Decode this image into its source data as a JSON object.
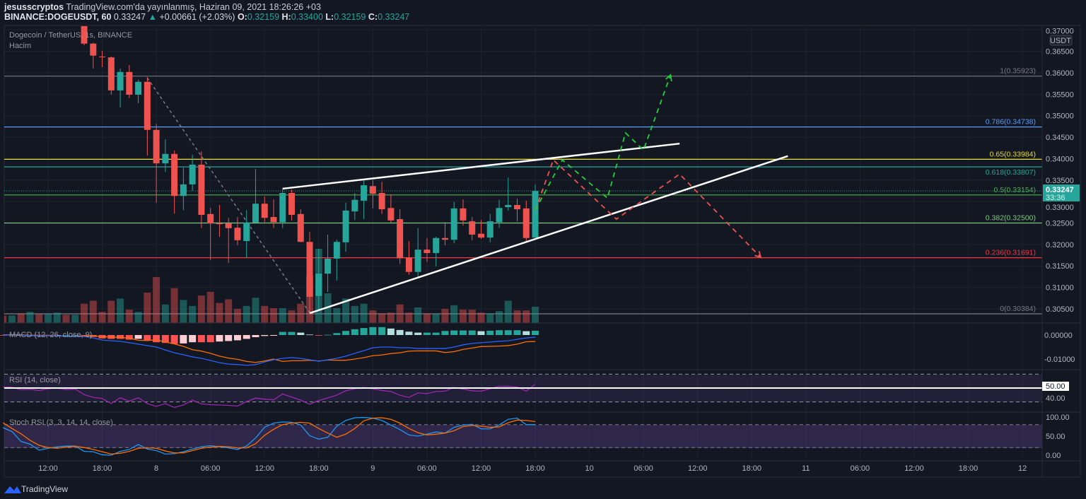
{
  "header": {
    "author": "jesusscryptos",
    "published": "TradingView.com'da yayınlanmış, Haziran 09, 2021 18:26:26 +03",
    "symbol": "BINANCE:DOGEUSDT, 60",
    "last": "0.33247",
    "change": "+0.00661 (+2.03%)",
    "o_label": "O:",
    "o": "0.32159",
    "h_label": "H:",
    "h": "0.33400",
    "l_label": "L:",
    "l": "0.32159",
    "c_label": "C:",
    "c": "0.33247"
  },
  "legend": {
    "title": "Dogecoin / TetherUS, 1s, BINANCE",
    "volume": "Hacim",
    "macd": "MACD (12, 26, close, 9)",
    "rsi": "RSI (14, close)",
    "stoch": "Stoch RSI (3, 3, 14, 14, close)"
  },
  "currency_badge": "USDT",
  "price_tag": {
    "value": "0.33247",
    "countdown": "33:36"
  },
  "rsi_tag": "50.00",
  "footer": {
    "brand": "TradingView"
  },
  "colors": {
    "up": "#26a69a",
    "down": "#ef5350",
    "background": "#131722",
    "macd": "#2962ff",
    "signal": "#ff6d00",
    "rsi": "#7e57c2",
    "stoch_k": "#2196f3",
    "stoch_d": "#ff6d00"
  },
  "chart_data": {
    "type": "candlestick",
    "interval": "60",
    "x_start": "2021-06-07 07:00",
    "price_axis": {
      "ticks": [
        "0.37000",
        "0.36500",
        "0.36000",
        "0.35500",
        "0.35000",
        "0.34500",
        "0.34000",
        "0.33500",
        "0.33000",
        "0.32500",
        "0.32000",
        "0.31500",
        "0.31000",
        "0.30500"
      ]
    },
    "time_axis": {
      "ticks": [
        "12:00",
        "18:00",
        "8",
        "06:00",
        "12:00",
        "18:00",
        "9",
        "06:00",
        "12:00",
        "18:00",
        "10",
        "06:00",
        "12:00",
        "18:00",
        "11",
        "06:00",
        "12:00",
        "18:00",
        "12"
      ]
    },
    "ohlc": [
      null,
      null,
      null,
      null,
      null,
      null,
      null,
      null,
      null,
      [
        0.3709,
        0.3712,
        0.3664,
        0.3668
      ],
      [
        0.3668,
        0.367,
        0.361,
        0.364
      ],
      [
        0.3638,
        0.3651,
        0.3613,
        0.3637
      ],
      [
        0.3636,
        0.3638,
        0.3549,
        0.3559
      ],
      [
        0.3559,
        0.361,
        0.3519,
        0.3602
      ],
      [
        0.3602,
        0.3618,
        0.3541,
        0.3549
      ],
      [
        0.3549,
        0.3584,
        0.3529,
        0.3579
      ],
      [
        0.3579,
        0.359,
        0.3407,
        0.3467
      ],
      [
        0.3467,
        0.3481,
        0.3297,
        0.3389
      ],
      [
        0.3389,
        0.3445,
        0.3369,
        0.3411
      ],
      [
        0.3411,
        0.3419,
        0.3272,
        0.3313
      ],
      [
        0.3313,
        0.3379,
        0.328,
        0.334
      ],
      [
        0.334,
        0.3409,
        0.3325,
        0.3386
      ],
      [
        0.3386,
        0.3417,
        0.3238,
        0.3269
      ],
      [
        0.3271,
        0.3285,
        0.3164,
        0.3249
      ],
      [
        0.3249,
        0.3292,
        0.3218,
        0.3248
      ],
      [
        0.3249,
        0.3262,
        0.3157,
        0.3238
      ],
      [
        0.3239,
        0.3264,
        0.3198,
        0.321
      ],
      [
        0.3208,
        0.328,
        0.3168,
        0.3251
      ],
      [
        0.3251,
        0.3376,
        0.3251,
        0.3295
      ],
      [
        0.3295,
        0.3312,
        0.3252,
        0.3262
      ],
      [
        0.3264,
        0.3305,
        0.3238,
        0.3252
      ],
      [
        0.3252,
        0.333,
        0.3238,
        0.332
      ],
      [
        0.332,
        0.3328,
        0.3256,
        0.3269
      ],
      [
        0.3271,
        0.3282,
        0.3205,
        0.3206
      ],
      [
        0.3206,
        0.3229,
        0.304,
        0.3078
      ],
      [
        0.308,
        0.319,
        0.3045,
        0.3132
      ],
      [
        0.3132,
        0.3223,
        0.3089,
        0.3167
      ],
      [
        0.3167,
        0.3211,
        0.3116,
        0.3206
      ],
      [
        0.3205,
        0.3297,
        0.3183,
        0.3279
      ],
      [
        0.3277,
        0.332,
        0.3257,
        0.3304
      ],
      [
        0.3302,
        0.335,
        0.3259,
        0.3338
      ],
      [
        0.3336,
        0.335,
        0.3284,
        0.3318
      ],
      [
        0.332,
        0.3346,
        0.3271,
        0.3282
      ],
      [
        0.3285,
        0.3317,
        0.3251,
        0.3256
      ],
      [
        0.3259,
        0.3282,
        0.3155,
        0.3168
      ],
      [
        0.317,
        0.3208,
        0.3129,
        0.3136
      ],
      [
        0.3136,
        0.3238,
        0.3122,
        0.3188
      ],
      [
        0.3188,
        0.3215,
        0.3159,
        0.318
      ],
      [
        0.318,
        0.3218,
        0.3149,
        0.3215
      ],
      [
        0.3215,
        0.3252,
        0.3198,
        0.3211
      ],
      [
        0.3211,
        0.3299,
        0.3203,
        0.3284
      ],
      [
        0.3284,
        0.3305,
        0.3244,
        0.3256
      ],
      [
        0.3254,
        0.3264,
        0.321,
        0.3223
      ],
      [
        0.3225,
        0.3257,
        0.3213,
        0.3216
      ],
      [
        0.3216,
        0.3271,
        0.3205,
        0.3254
      ],
      [
        0.3252,
        0.3304,
        0.3239,
        0.3285
      ],
      [
        0.3287,
        0.3356,
        0.3279,
        0.3292
      ],
      [
        0.3292,
        0.3307,
        0.3254,
        0.3282
      ],
      [
        0.3284,
        0.3302,
        0.3206,
        0.3215
      ],
      [
        0.32159,
        0.334,
        0.32159,
        0.33247
      ]
    ],
    "volume_relative": [
      10,
      10,
      13,
      15,
      12,
      12,
      14,
      11,
      11,
      26,
      30,
      15,
      30,
      33,
      18,
      15,
      41,
      62,
      25,
      47,
      31,
      23,
      37,
      42,
      27,
      32,
      19,
      23,
      34,
      23,
      20,
      20,
      17,
      26,
      64,
      100,
      40,
      20,
      33,
      23,
      26,
      17,
      13,
      14,
      25,
      14,
      21,
      13,
      12,
      19,
      24,
      18,
      18,
      14,
      13,
      16,
      30,
      17,
      17,
      22
    ],
    "volume_up_early": [
      0,
      1,
      0,
      1,
      0,
      1,
      1,
      0,
      1
    ],
    "macd": {
      "line": [
        0,
        0,
        0,
        -0.0003,
        -0.0003,
        -0.0003,
        -0.0003,
        -0.0006,
        -0.0006,
        -0.0006,
        -0.0012,
        -0.0021,
        -0.0024,
        -0.0026,
        -0.0032,
        -0.0038,
        -0.0044,
        -0.005,
        -0.0062,
        -0.0074,
        -0.0082,
        -0.0091,
        -0.0097,
        -0.0106,
        -0.0115,
        -0.0121,
        -0.0123,
        -0.0126,
        -0.0123,
        -0.0112,
        -0.0103,
        -0.0097,
        -0.0094,
        -0.0097,
        -0.0103,
        -0.0109,
        -0.0103,
        -0.0097,
        -0.0088,
        -0.0076,
        -0.0065,
        -0.0053,
        -0.005,
        -0.005,
        -0.0053,
        -0.0053,
        -0.0056,
        -0.0056,
        -0.0056,
        -0.0056,
        -0.005,
        -0.0041,
        -0.0035,
        -0.0032,
        -0.0029,
        -0.0026,
        -0.0024,
        -0.0018,
        -0.0012,
        -0.0009
      ],
      "histogram": [
        -0.0001,
        -0.0001,
        -0.0001,
        -0.0002,
        -0.0002,
        -0.0002,
        -0.0001,
        0,
        0,
        -0.0002,
        -0.0008,
        -0.0014,
        -0.0016,
        -0.0016,
        -0.0019,
        -0.0016,
        -0.0021,
        -0.003,
        -0.0033,
        -0.0037,
        -0.0035,
        -0.003,
        -0.003,
        -0.003,
        -0.0027,
        -0.0025,
        -0.0022,
        -0.0016,
        -0.0009,
        -0.0004,
        -0.0003,
        0.0013,
        0.0013,
        0.001,
        0.0002,
        -0.0001,
        0.0001,
        0.0008,
        0.0017,
        0.0024,
        0.0029,
        0.0033,
        0.0033,
        0.0027,
        0.0021,
        0.0014,
        0.001,
        0.001,
        0.001,
        0.0017,
        0.0019,
        0.0019,
        0.0019,
        0.0016,
        0.0018,
        0.002,
        0.002,
        0.002,
        0.0016,
        0.0018
      ],
      "axis_ticks": [
        "0.00000",
        "-0.01000"
      ]
    },
    "rsi": {
      "values": [
        51.3,
        51.3,
        47.3,
        48,
        46.5,
        49,
        50,
        47.5,
        48.5,
        40.5,
        36.5,
        35,
        27.5,
        36,
        31,
        36,
        27.5,
        23.5,
        27.5,
        22,
        25.5,
        32.5,
        27,
        26,
        25.5,
        25,
        24,
        30.5,
        35.5,
        34,
        33,
        41.5,
        37,
        32.5,
        26.5,
        32,
        35.7,
        39.8,
        46,
        49,
        51,
        48.7,
        46.5,
        45,
        39.5,
        36.5,
        43,
        42,
        45,
        45.5,
        51,
        48.5,
        46,
        45.5,
        49,
        52.5,
        52.5,
        51.5,
        45.5,
        55.5
      ],
      "bands": [
        70,
        30
      ],
      "mid": 50,
      "axis_ticks": [
        "40.00"
      ]
    },
    "stoch_rsi": {
      "k": [
        72,
        62,
        36,
        29,
        13,
        18,
        22,
        24,
        24,
        10,
        9,
        1,
        0,
        10,
        15,
        28,
        16,
        12,
        3,
        4,
        9,
        16,
        22,
        25,
        22,
        19,
        15,
        24,
        45,
        73,
        84,
        87,
        86,
        79,
        51,
        42,
        47,
        76,
        91,
        98,
        99,
        97,
        91,
        79,
        67,
        53,
        50,
        55,
        61,
        58,
        73,
        79,
        81,
        69,
        69,
        79,
        94,
        97,
        80,
        80
      ],
      "d": [
        85,
        70,
        56,
        39,
        26,
        20,
        18,
        21,
        23,
        20,
        15,
        9,
        3,
        5,
        10,
        18,
        19,
        18,
        11,
        6,
        6,
        12,
        18,
        21,
        23,
        22,
        19,
        19,
        30,
        52,
        68,
        80,
        84,
        86,
        84,
        70,
        58,
        47,
        55,
        70,
        90,
        97,
        98,
        94,
        84,
        70,
        59,
        53,
        55,
        58,
        64,
        75,
        78,
        76,
        73,
        74,
        85,
        92,
        91,
        88
      ],
      "bands": [
        80,
        20
      ],
      "axis_ticks": [
        "100.00",
        "50.00",
        "0.00"
      ]
    },
    "fibonacci": [
      {
        "label": "1(0.35923)",
        "price": 0.35923,
        "color": "#787b86"
      },
      {
        "label": "0.786(0.34738)",
        "price": 0.34738,
        "color": "#5b9cf6"
      },
      {
        "label": "0.65(0.33984)",
        "price": 0.33984,
        "color": "#e5d93b"
      },
      {
        "label": "0.618(0.33807)",
        "price": 0.33807,
        "color": "#26a69a"
      },
      {
        "label": "0.5(0.33154)",
        "price": 0.33154,
        "color": "#4caf50"
      },
      {
        "label": "0.382(0.32500)",
        "price": 0.325,
        "color": "#81c784"
      },
      {
        "label": "0.236(0.31691)",
        "price": 0.31691,
        "color": "#f23645"
      },
      {
        "label": "0(0.30384)",
        "price": 0.30384,
        "color": "#787b86"
      }
    ],
    "trendlines": [
      {
        "from": [
          "2021-06-08 14:00",
          0.333
        ],
        "to": [
          "2021-06-10 10:00",
          0.3435
        ],
        "color": "#ffffff"
      },
      {
        "from": [
          "2021-06-08 17:00",
          0.304
        ],
        "to": [
          "2021-06-10 22:00",
          0.3406
        ],
        "color": "#ffffff"
      }
    ],
    "fib_anchor_line": {
      "from": [
        "2021-06-07 23:00",
        0.3588
      ],
      "to": [
        "2021-06-08 17:00",
        0.3041
      ],
      "color": "#787b86"
    },
    "projection_paths": [
      {
        "color": "#ef5350",
        "points": [
          [
            "2021-06-09 18:00",
            0.3279
          ],
          [
            "2021-06-09 20:00",
            0.3397
          ],
          [
            "2021-06-10 03:00",
            0.3259
          ],
          [
            "2021-06-10 10:00",
            0.3364
          ],
          [
            "2021-06-10 19:00",
            0.317
          ]
        ]
      },
      {
        "color": "#1fd13a",
        "points": [
          [
            "2021-06-09 18:00",
            0.328
          ],
          [
            "2021-06-09 21:00",
            0.3397
          ],
          [
            "2021-06-10 02:00",
            0.3308
          ],
          [
            "2021-06-10 04:00",
            0.346
          ],
          [
            "2021-06-10 06:00",
            0.342
          ],
          [
            "2021-06-10 09:00",
            0.3595
          ]
        ]
      }
    ]
  }
}
